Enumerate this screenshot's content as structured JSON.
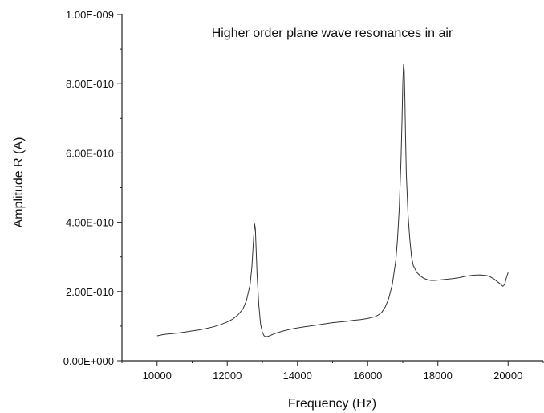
{
  "chart_data": {
    "type": "line",
    "title": "Higher order plane wave resonances in air",
    "xlabel": "Frequency (Hz)",
    "ylabel": "Amplitude R (A)",
    "xlim": [
      9000,
      21000
    ],
    "ylim": [
      0,
      1e-09
    ],
    "x_ticks": [
      10000,
      12000,
      14000,
      16000,
      18000,
      20000
    ],
    "x_tick_labels": [
      "10000",
      "12000",
      "14000",
      "16000",
      "18000",
      "20000"
    ],
    "y_ticks": [
      0,
      2e-10,
      4e-10,
      6e-10,
      8e-10,
      1e-09
    ],
    "y_tick_labels": [
      "0.00E+000",
      "2.00E-010",
      "4.00E-010",
      "6.00E-010",
      "8.00E-010",
      "1.00E-009"
    ],
    "grid": false,
    "legend": "none",
    "colors": {
      "series": "#333333",
      "axis": "#222222",
      "text": "#111111"
    },
    "series": [
      {
        "x": [
          10000,
          10200,
          10400,
          10600,
          10800,
          11000,
          11200,
          11400,
          11600,
          11800,
          12000,
          12150,
          12300,
          12450,
          12550,
          12650,
          12700,
          12730,
          12760,
          12780,
          12800,
          12820,
          12850,
          12900,
          12950,
          13000,
          13050,
          13100,
          13150,
          13200,
          13300,
          13400,
          13600,
          13800,
          14000,
          14200,
          14400,
          14600,
          14800,
          15000,
          15200,
          15400,
          15600,
          15800,
          16000,
          16200,
          16300,
          16400,
          16500,
          16600,
          16700,
          16800,
          16850,
          16900,
          16950,
          16980,
          17000,
          17020,
          17040,
          17060,
          17080,
          17100,
          17150,
          17200,
          17250,
          17300,
          17400,
          17500,
          17600,
          17700,
          17800,
          17900,
          18000,
          18200,
          18400,
          18600,
          18800,
          19000,
          19200,
          19400,
          19500,
          19600,
          19700,
          19800,
          19850,
          19900,
          19950,
          20000
        ],
        "y": [
          7.2e-11,
          7.6e-11,
          7.8e-11,
          8e-11,
          8.3e-11,
          8.6e-11,
          8.9e-11,
          9.3e-11,
          9.8e-11,
          1.04e-10,
          1.12e-10,
          1.2e-10,
          1.32e-10,
          1.5e-10,
          1.75e-10,
          2.2e-10,
          2.7e-10,
          3.2e-10,
          3.7e-10,
          3.95e-10,
          3.8e-10,
          3.3e-10,
          2.5e-10,
          1.6e-10,
          1.05e-10,
          8.2e-11,
          7.2e-11,
          6.9e-11,
          7e-11,
          7.2e-11,
          7.6e-11,
          8e-11,
          8.6e-11,
          9.1e-11,
          9.5e-11,
          9.8e-11,
          1.01e-10,
          1.04e-10,
          1.07e-10,
          1.1e-10,
          1.12e-10,
          1.14e-10,
          1.17e-10,
          1.19e-10,
          1.22e-10,
          1.27e-10,
          1.32e-10,
          1.4e-10,
          1.55e-10,
          1.8e-10,
          2.2e-10,
          2.9e-10,
          3.5e-10,
          4.4e-10,
          5.8e-10,
          7e-10,
          8e-10,
          8.55e-10,
          8.4e-10,
          7.6e-10,
          6.4e-10,
          5.4e-10,
          4.2e-10,
          3.5e-10,
          3e-10,
          2.75e-10,
          2.55e-10,
          2.45e-10,
          2.38e-10,
          2.34e-10,
          2.32e-10,
          2.32e-10,
          2.33e-10,
          2.35e-10,
          2.37e-10,
          2.4e-10,
          2.44e-10,
          2.47e-10,
          2.48e-10,
          2.46e-10,
          2.42e-10,
          2.36e-10,
          2.28e-10,
          2.2e-10,
          2.15e-10,
          2.2e-10,
          2.4e-10,
          2.55e-10
        ]
      }
    ]
  }
}
